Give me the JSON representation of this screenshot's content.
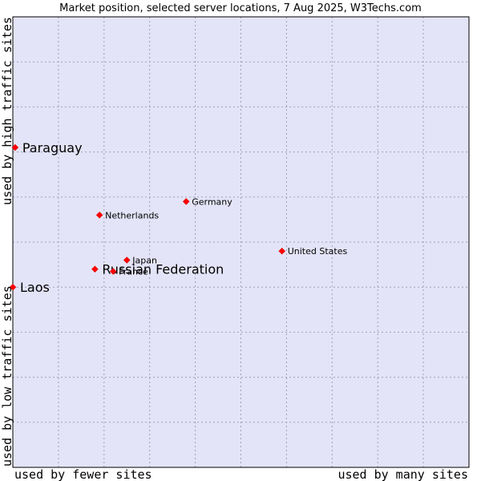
{
  "chart_data": {
    "type": "scatter",
    "title": "Market position, selected server locations, 7 Aug 2025, W3Techs.com",
    "xlabel_left": "used by fewer sites",
    "xlabel_right": "used by many sites",
    "ylabel_bottom": "used by low traffic sites",
    "ylabel_top": "used by high traffic sites",
    "xlim": [
      0,
      10
    ],
    "ylim": [
      0,
      10
    ],
    "grid": true,
    "colors": {
      "plot_background": "#e4e4f8",
      "grid": "#a0a0b4",
      "border": "#000000",
      "marker": "#ff0000",
      "marker_stroke": "#cc0000"
    },
    "points": [
      {
        "name": "Paraguay",
        "x": 0.05,
        "y": 7.1,
        "emphasis": true
      },
      {
        "name": "Laos",
        "x": 0.0,
        "y": 4.0,
        "emphasis": true
      },
      {
        "name": "Russian Federation",
        "x": 1.8,
        "y": 4.4,
        "emphasis": true
      },
      {
        "name": "Germany",
        "x": 3.8,
        "y": 5.9,
        "emphasis": false
      },
      {
        "name": "Netherlands",
        "x": 1.9,
        "y": 5.6,
        "emphasis": false
      },
      {
        "name": "United States",
        "x": 5.9,
        "y": 4.8,
        "emphasis": false
      },
      {
        "name": "Japan",
        "x": 2.5,
        "y": 4.6,
        "emphasis": false
      },
      {
        "name": "France",
        "x": 2.2,
        "y": 4.35,
        "emphasis": false
      }
    ]
  }
}
